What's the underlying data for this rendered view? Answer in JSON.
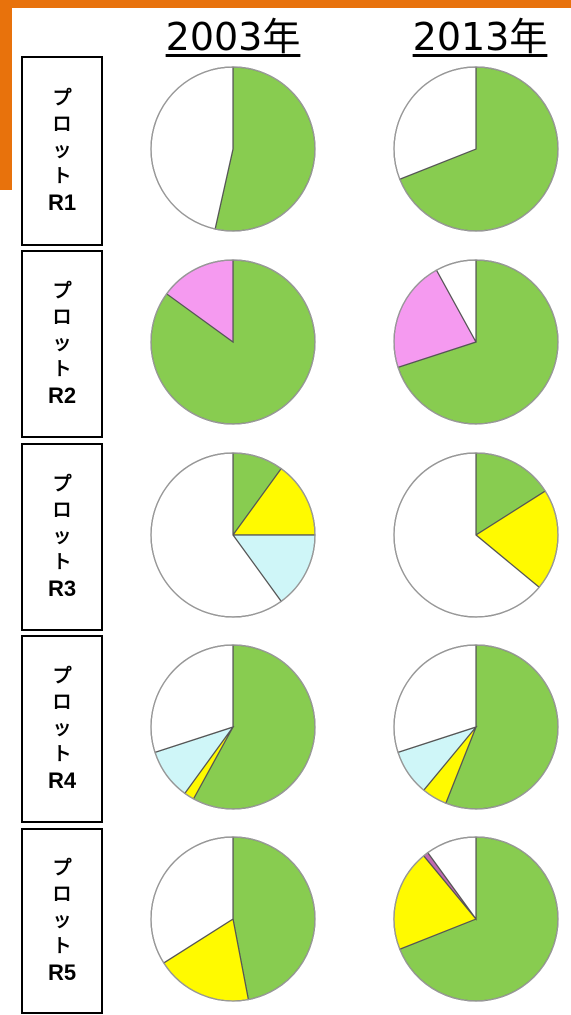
{
  "years": [
    "2003年",
    "2013年"
  ],
  "chart_data": {
    "type": "pie",
    "years": [
      "2003年",
      "2013年"
    ],
    "colors": {
      "green": "#88cc50",
      "pink": "#f59af0",
      "yellow": "#fffa00",
      "lightblue": "#cff6f8",
      "purple": "#c06ab0",
      "white": "#ffffff"
    },
    "rows": [
      {
        "label": "R1",
        "kata": [
          "プ",
          "ロ",
          "ッ",
          "ト"
        ],
        "pies": [
          {
            "year": "2003年",
            "slices": [
              {
                "color": "green",
                "value": 0.535
              },
              {
                "color": "white",
                "value": 0.465
              }
            ]
          },
          {
            "year": "2013年",
            "slices": [
              {
                "color": "green",
                "value": 0.69
              },
              {
                "color": "white",
                "value": 0.31
              }
            ]
          }
        ]
      },
      {
        "label": "R2",
        "kata": [
          "プ",
          "ロ",
          "ッ",
          "ト"
        ],
        "pies": [
          {
            "year": "2003年",
            "slices": [
              {
                "color": "green",
                "value": 0.85
              },
              {
                "color": "pink",
                "value": 0.15
              }
            ]
          },
          {
            "year": "2013年",
            "slices": [
              {
                "color": "green",
                "value": 0.7
              },
              {
                "color": "pink",
                "value": 0.22
              },
              {
                "color": "white",
                "value": 0.08
              }
            ]
          }
        ]
      },
      {
        "label": "R3",
        "kata": [
          "プ",
          "ロ",
          "ッ",
          "ト"
        ],
        "pies": [
          {
            "year": "2003年",
            "slices": [
              {
                "color": "green",
                "value": 0.1
              },
              {
                "color": "yellow",
                "value": 0.15
              },
              {
                "color": "lightblue",
                "value": 0.15
              },
              {
                "color": "white",
                "value": 0.6
              }
            ]
          },
          {
            "year": "2013年",
            "slices": [
              {
                "color": "green",
                "value": 0.16
              },
              {
                "color": "yellow",
                "value": 0.2
              },
              {
                "color": "white",
                "value": 0.64
              }
            ]
          }
        ]
      },
      {
        "label": "R4",
        "kata": [
          "プ",
          "ロ",
          "ッ",
          "ト"
        ],
        "pies": [
          {
            "year": "2003年",
            "slices": [
              {
                "color": "green",
                "value": 0.58
              },
              {
                "color": "yellow",
                "value": 0.02
              },
              {
                "color": "lightblue",
                "value": 0.1
              },
              {
                "color": "white",
                "value": 0.3
              }
            ]
          },
          {
            "year": "2013年",
            "slices": [
              {
                "color": "green",
                "value": 0.56
              },
              {
                "color": "yellow",
                "value": 0.05
              },
              {
                "color": "lightblue",
                "value": 0.09
              },
              {
                "color": "white",
                "value": 0.3
              }
            ]
          }
        ]
      },
      {
        "label": "R5",
        "kata": [
          "プ",
          "ロ",
          "ッ",
          "ト"
        ],
        "pies": [
          {
            "year": "2003年",
            "slices": [
              {
                "color": "green",
                "value": 0.47
              },
              {
                "color": "yellow",
                "value": 0.19
              },
              {
                "color": "white",
                "value": 0.34
              }
            ]
          },
          {
            "year": "2013年",
            "slices": [
              {
                "color": "green",
                "value": 0.69
              },
              {
                "color": "yellow",
                "value": 0.2
              },
              {
                "color": "purple",
                "value": 0.01
              },
              {
                "color": "white",
                "value": 0.1
              }
            ]
          }
        ]
      }
    ]
  }
}
